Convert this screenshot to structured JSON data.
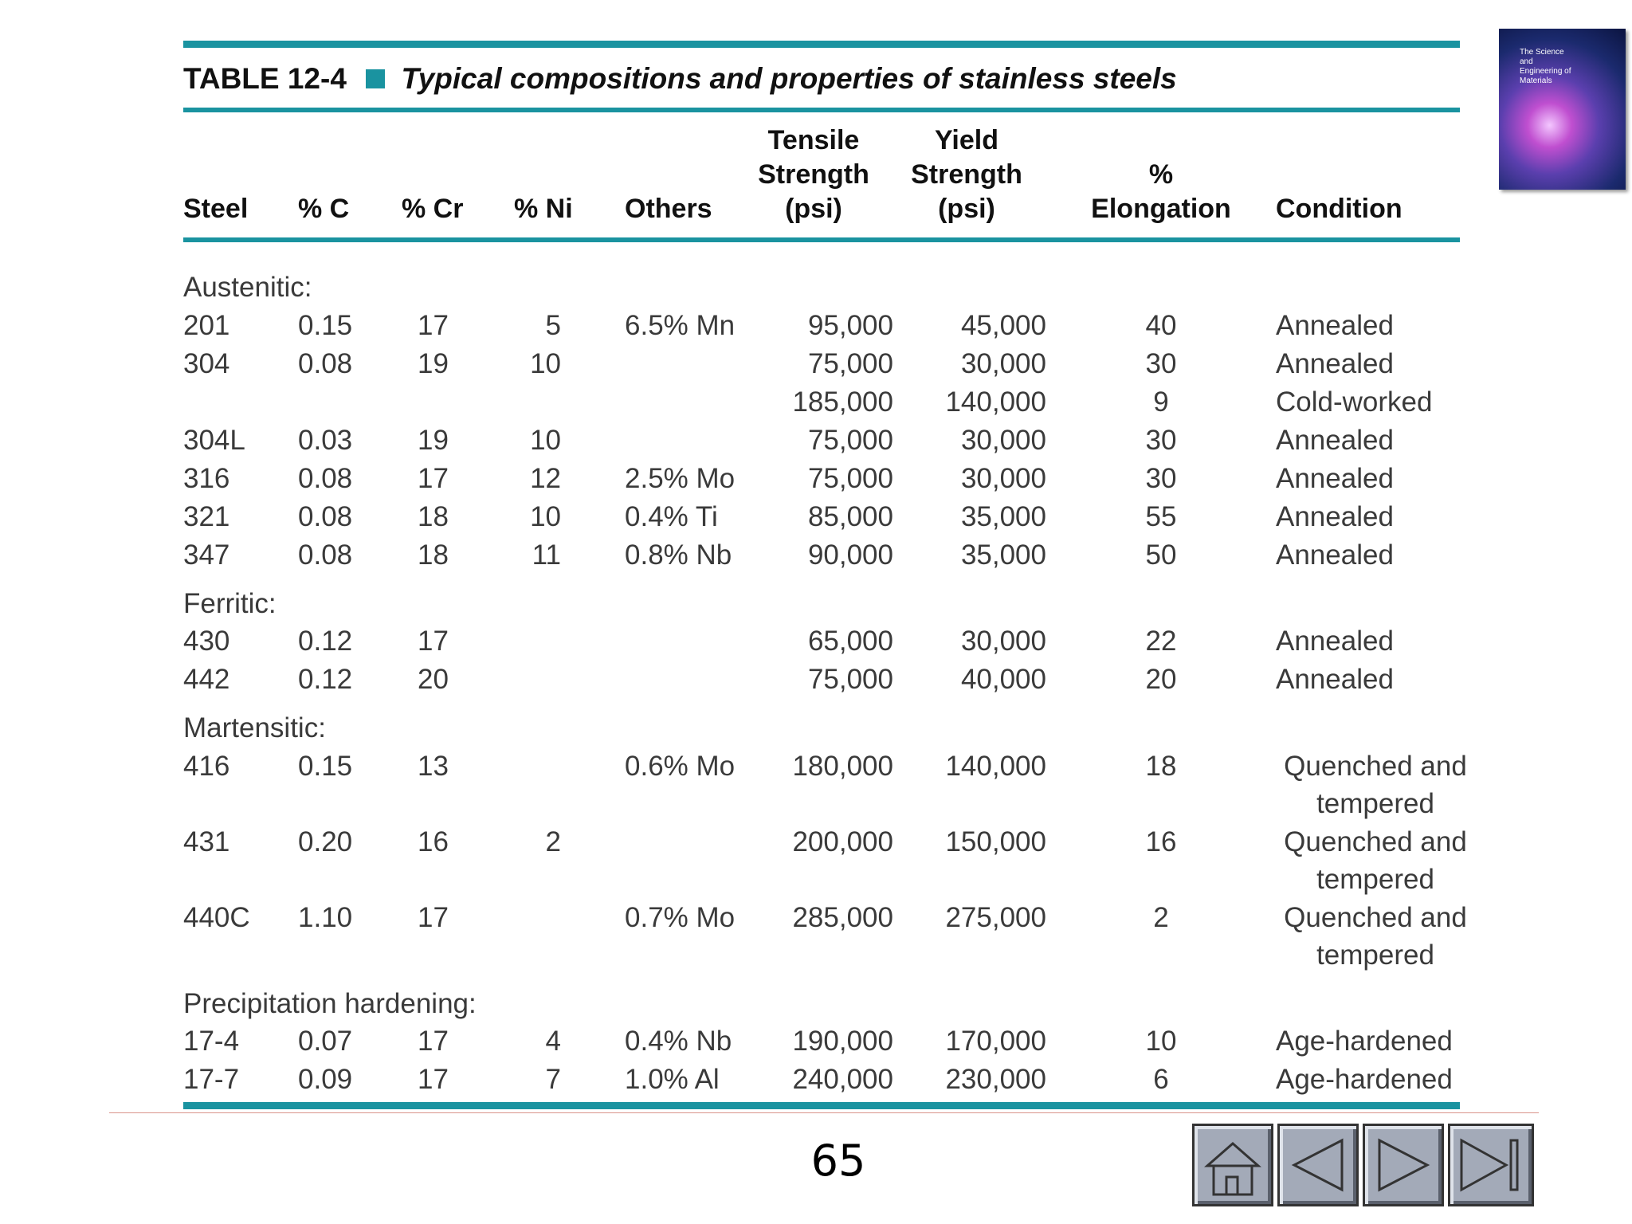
{
  "header": {
    "label": "TABLE 12-4",
    "title": "Typical compositions and properties of stainless steels"
  },
  "columns": [
    [
      "Steel"
    ],
    [
      "% C"
    ],
    [
      "% Cr"
    ],
    [
      "% Ni"
    ],
    [
      "Others"
    ],
    [
      "Tensile",
      "Strength",
      "(psi)"
    ],
    [
      "Yield",
      "Strength",
      "(psi)"
    ],
    [
      "%",
      "Elongation"
    ],
    [
      "Condition"
    ]
  ],
  "sections": [
    {
      "name": "Austenitic:",
      "rows": [
        {
          "steel": "201",
          "c": "0.15",
          "cr": "17",
          "ni": "5",
          "others": "6.5% Mn",
          "tensile": "95,000",
          "yield": "45,000",
          "elongation": "40",
          "condition": "Annealed"
        },
        {
          "steel": "304",
          "c": "0.08",
          "cr": "19",
          "ni": "10",
          "tensile": "75,000",
          "yield": "30,000",
          "elongation": "30",
          "condition": "Annealed"
        },
        {
          "tensile": "185,000",
          "yield": "140,000",
          "elongation": "9",
          "condition": "Cold-worked"
        },
        {
          "steel": "304L",
          "c": "0.03",
          "cr": "19",
          "ni": "10",
          "tensile": "75,000",
          "yield": "30,000",
          "elongation": "30",
          "condition": "Annealed"
        },
        {
          "steel": "316",
          "c": "0.08",
          "cr": "17",
          "ni": "12",
          "others": "2.5% Mo",
          "tensile": "75,000",
          "yield": "30,000",
          "elongation": "30",
          "condition": "Annealed"
        },
        {
          "steel": "321",
          "c": "0.08",
          "cr": "18",
          "ni": "10",
          "others": "0.4% Ti",
          "tensile": "85,000",
          "yield": "35,000",
          "elongation": "55",
          "condition": "Annealed"
        },
        {
          "steel": "347",
          "c": "0.08",
          "cr": "18",
          "ni": "11",
          "others": "0.8% Nb",
          "tensile": "90,000",
          "yield": "35,000",
          "elongation": "50",
          "condition": "Annealed"
        }
      ]
    },
    {
      "name": "Ferritic:",
      "rows": [
        {
          "steel": "430",
          "c": "0.12",
          "cr": "17",
          "tensile": "65,000",
          "yield": "30,000",
          "elongation": "22",
          "condition": "Annealed"
        },
        {
          "steel": "442",
          "c": "0.12",
          "cr": "20",
          "tensile": "75,000",
          "yield": "40,000",
          "elongation": "20",
          "condition": "Annealed"
        }
      ]
    },
    {
      "name": "Martensitic:",
      "rows": [
        {
          "steel": "416",
          "c": "0.15",
          "cr": "13",
          "others": "0.6% Mo",
          "tensile": "180,000",
          "yield": "140,000",
          "elongation": "18",
          "condition": "Quenched and tempered"
        },
        {
          "steel": "431",
          "c": "0.20",
          "cr": "16",
          "ni": "2",
          "tensile": "200,000",
          "yield": "150,000",
          "elongation": "16",
          "condition": "Quenched and tempered"
        },
        {
          "steel": "440C",
          "c": "1.10",
          "cr": "17",
          "others": "0.7% Mo",
          "tensile": "285,000",
          "yield": "275,000",
          "elongation": "2",
          "condition": "Quenched and tempered"
        }
      ]
    },
    {
      "name": "Precipitation hardening:",
      "rows": [
        {
          "steel": "17-4",
          "c": "0.07",
          "cr": "17",
          "ni": "4",
          "others": "0.4% Nb",
          "tensile": "190,000",
          "yield": "170,000",
          "elongation": "10",
          "condition": "Age-hardened"
        },
        {
          "steel": "17-7",
          "c": "0.09",
          "cr": "17",
          "ni": "7",
          "others": "1.0% Al",
          "tensile": "240,000",
          "yield": "230,000",
          "elongation": "6",
          "condition": "Age-hardened"
        }
      ]
    }
  ],
  "cover": {
    "title": "The Science and Engineering of Materials"
  },
  "footer": {
    "page_number": "65"
  }
}
